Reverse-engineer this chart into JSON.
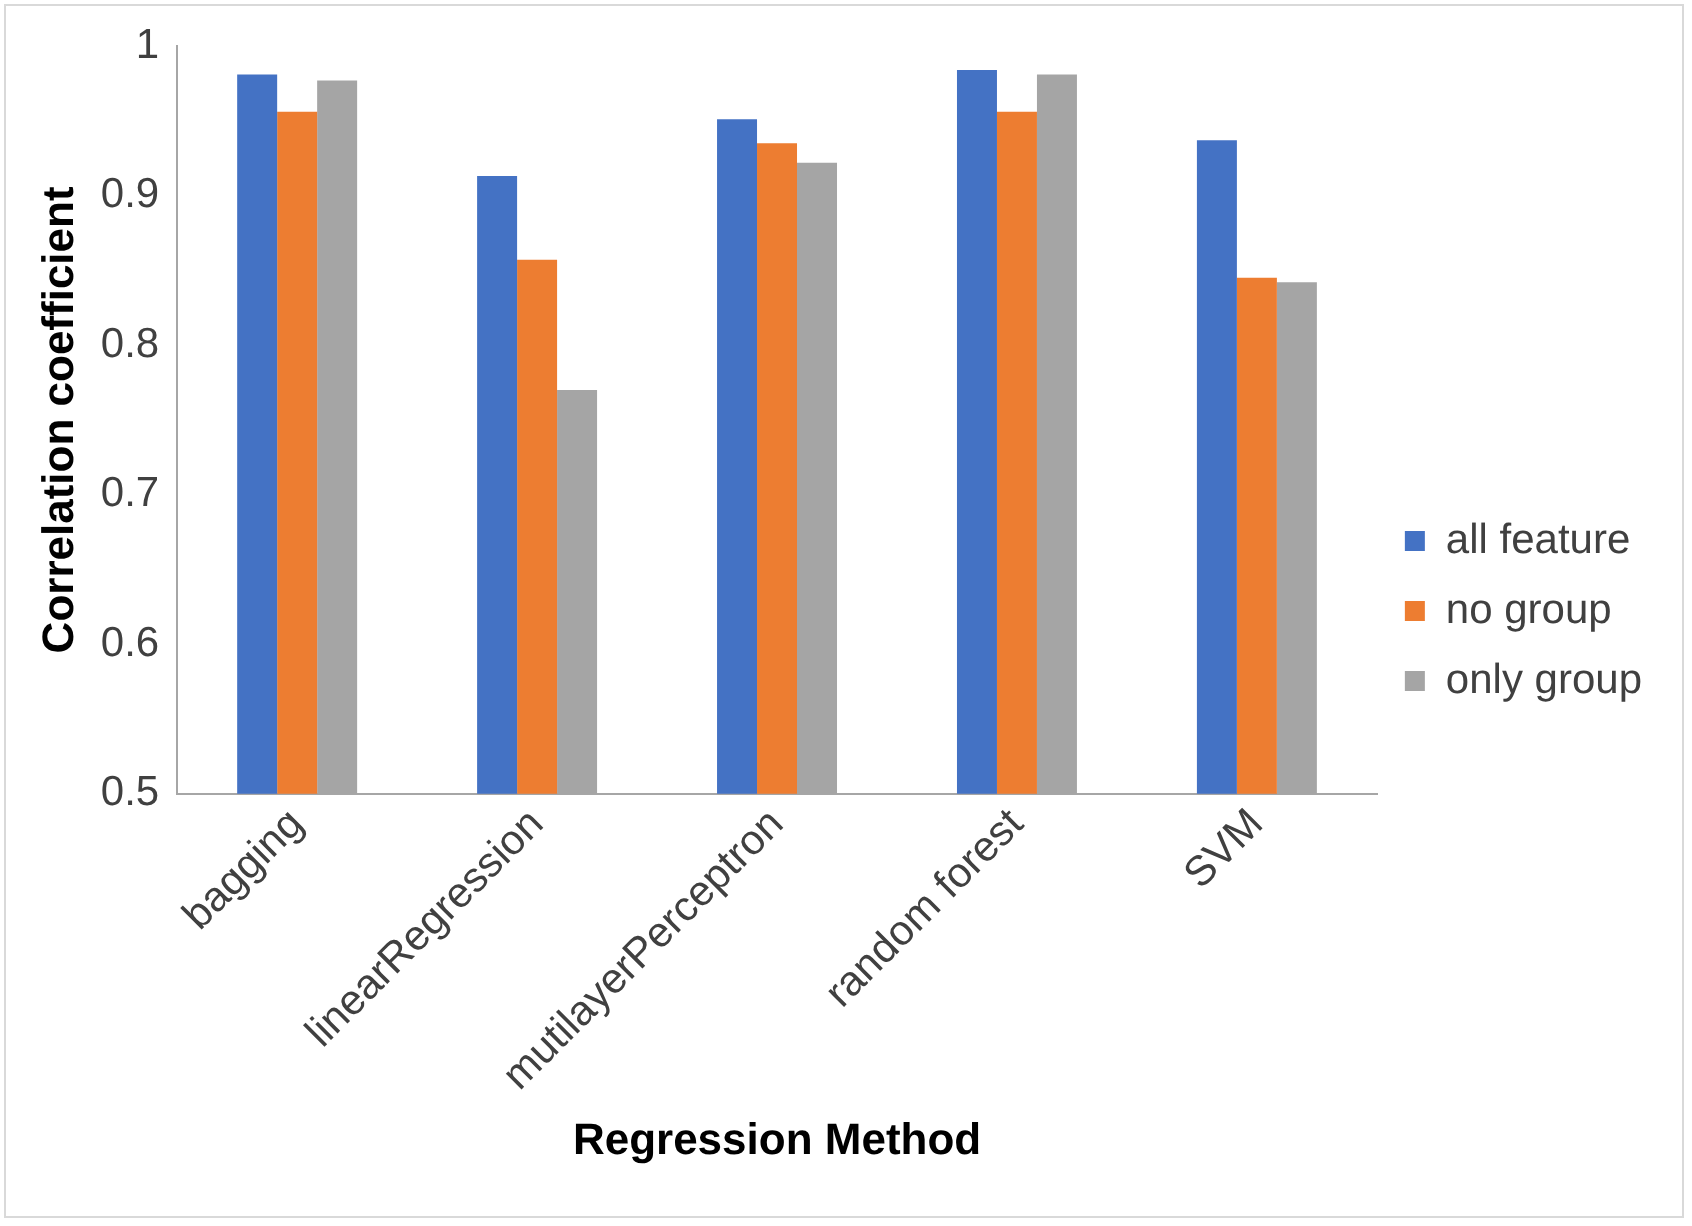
{
  "chart_data": {
    "type": "bar",
    "xlabel": "Regression Method",
    "ylabel": "Correlation coefficient",
    "categories": [
      "bagging",
      "linearRegression",
      "mutilayerPerceptron",
      "random forest",
      "SVM"
    ],
    "series": [
      {
        "name": "all feature",
        "color": "#4472c4",
        "values": [
          0.981,
          0.913,
          0.951,
          0.984,
          0.937
        ]
      },
      {
        "name": "no group",
        "color": "#ed7d31",
        "values": [
          0.956,
          0.857,
          0.935,
          0.956,
          0.845
        ]
      },
      {
        "name": "only group",
        "color": "#a5a5a5",
        "values": [
          0.977,
          0.77,
          0.922,
          0.981,
          0.842
        ]
      }
    ],
    "ylim": [
      0.5,
      1
    ],
    "yticks": [
      0.5,
      0.6,
      0.7,
      0.8,
      0.9,
      1
    ],
    "grid": false,
    "legend": "right"
  }
}
